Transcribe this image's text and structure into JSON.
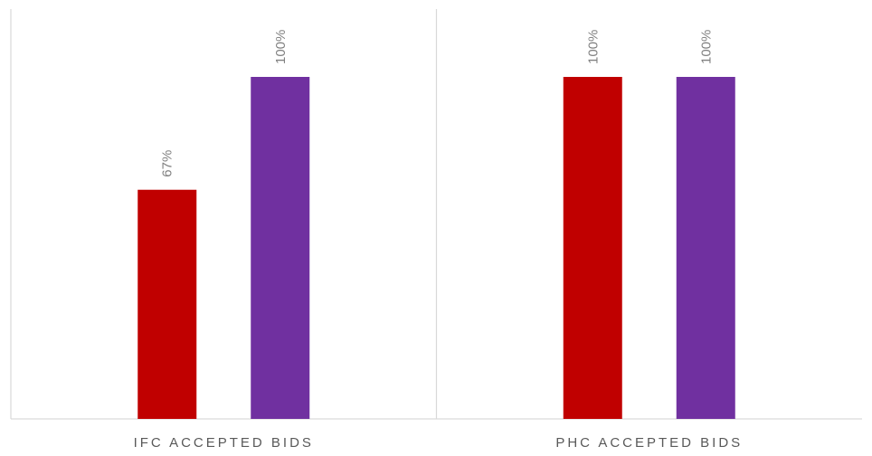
{
  "chart_data": {
    "type": "bar",
    "categories": [
      "IFC ACCEPTED BIDS",
      "PHC ACCEPTED BIDS"
    ],
    "series": [
      {
        "values": [
          67,
          100
        ],
        "color": "#C00000"
      },
      {
        "values": [
          100,
          100
        ],
        "color": "#7030A0"
      }
    ],
    "value_suffix": "%",
    "ylim": [
      0,
      100
    ],
    "grid": false,
    "legend": "none",
    "title": "",
    "xlabel": "",
    "ylabel": ""
  }
}
